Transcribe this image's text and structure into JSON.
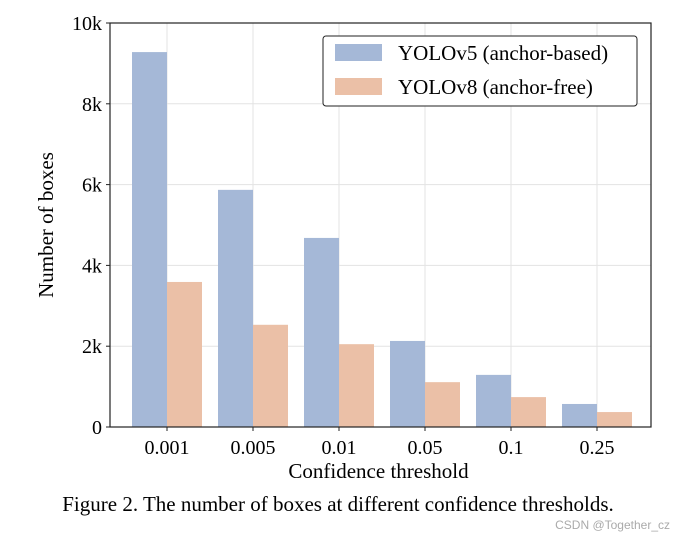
{
  "chart_data": {
    "type": "bar",
    "categories": [
      "0.001",
      "0.005",
      "0.01",
      "0.05",
      "0.1",
      "0.25"
    ],
    "series": [
      {
        "name": "YOLOv5 (anchor-based)",
        "color": "#a5b8d7",
        "values": [
          9280,
          5870,
          4680,
          2130,
          1290,
          570
        ]
      },
      {
        "name": "YOLOv8 (anchor-free)",
        "color": "#ebc0a7",
        "values": [
          3590,
          2530,
          2050,
          1110,
          740,
          370
        ]
      }
    ],
    "xlabel": "Confidence threshold",
    "ylabel": "Number of boxes",
    "ylim": [
      0,
      10000
    ],
    "yticks": [
      0,
      2000,
      4000,
      6000,
      8000,
      10000
    ],
    "ytick_labels": [
      "0",
      "2k",
      "4k",
      "6k",
      "8k",
      "10k"
    ],
    "grid": true,
    "legend_position": "top-right"
  },
  "caption": "Figure 2. The number of boxes at different confidence thresholds.",
  "watermark": "CSDN @Together_cz"
}
